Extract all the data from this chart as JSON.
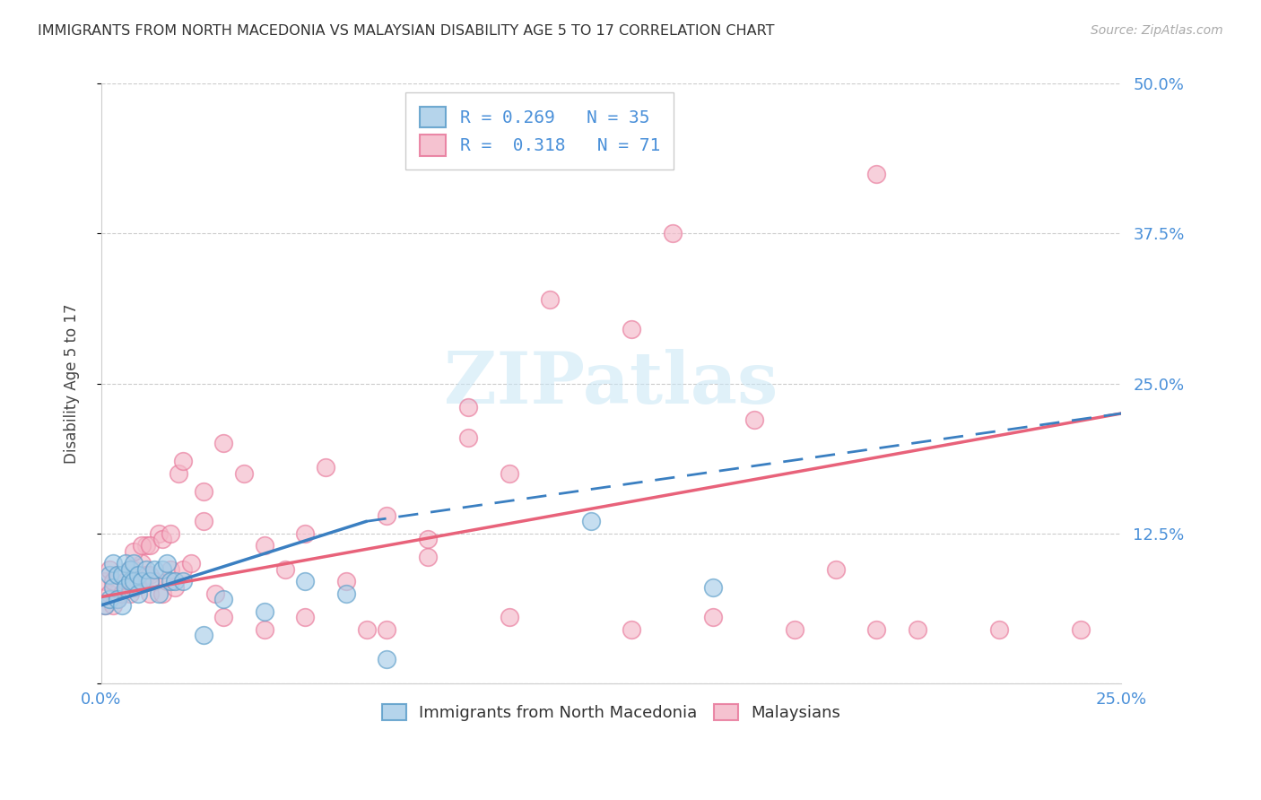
{
  "title": "IMMIGRANTS FROM NORTH MACEDONIA VS MALAYSIAN DISABILITY AGE 5 TO 17 CORRELATION CHART",
  "source": "Source: ZipAtlas.com",
  "ylabel": "Disability Age 5 to 17",
  "xlim": [
    0.0,
    0.25
  ],
  "ylim": [
    0.0,
    0.5
  ],
  "x_ticks": [
    0.0,
    0.05,
    0.1,
    0.15,
    0.2,
    0.25
  ],
  "y_ticks": [
    0.0,
    0.125,
    0.25,
    0.375,
    0.5
  ],
  "y_tick_labels_right": [
    "",
    "12.5%",
    "25.0%",
    "37.5%",
    "50.0%"
  ],
  "legend_text_1": "R = 0.269   N = 35",
  "legend_text_2": "R =  0.318   N = 71",
  "blue_color": "#a8cde8",
  "pink_color": "#f4b8c8",
  "blue_edge_color": "#5b9dc9",
  "pink_edge_color": "#e8779a",
  "blue_line_color": "#3a7fc1",
  "pink_line_color": "#e8627a",
  "label_color": "#4a90d9",
  "watermark": "ZIPatlas",
  "blue_scatter_x": [
    0.001,
    0.002,
    0.002,
    0.003,
    0.003,
    0.004,
    0.004,
    0.005,
    0.005,
    0.006,
    0.006,
    0.007,
    0.007,
    0.008,
    0.008,
    0.009,
    0.009,
    0.01,
    0.011,
    0.012,
    0.013,
    0.014,
    0.015,
    0.016,
    0.017,
    0.018,
    0.02,
    0.025,
    0.03,
    0.04,
    0.05,
    0.06,
    0.07,
    0.12,
    0.15
  ],
  "blue_scatter_y": [
    0.065,
    0.07,
    0.09,
    0.08,
    0.1,
    0.07,
    0.09,
    0.065,
    0.09,
    0.08,
    0.1,
    0.085,
    0.095,
    0.085,
    0.1,
    0.075,
    0.09,
    0.085,
    0.095,
    0.085,
    0.095,
    0.075,
    0.095,
    0.1,
    0.085,
    0.085,
    0.085,
    0.04,
    0.07,
    0.06,
    0.085,
    0.075,
    0.02,
    0.135,
    0.08
  ],
  "pink_scatter_x": [
    0.001,
    0.001,
    0.002,
    0.002,
    0.003,
    0.003,
    0.004,
    0.004,
    0.005,
    0.006,
    0.007,
    0.007,
    0.008,
    0.008,
    0.009,
    0.01,
    0.01,
    0.011,
    0.011,
    0.012,
    0.012,
    0.013,
    0.014,
    0.015,
    0.016,
    0.017,
    0.018,
    0.019,
    0.02,
    0.022,
    0.025,
    0.028,
    0.03,
    0.035,
    0.04,
    0.045,
    0.05,
    0.055,
    0.06,
    0.065,
    0.07,
    0.08,
    0.09,
    0.1,
    0.11,
    0.13,
    0.14,
    0.16,
    0.18,
    0.19,
    0.2,
    0.22,
    0.24,
    0.008,
    0.01,
    0.012,
    0.015,
    0.017,
    0.02,
    0.025,
    0.03,
    0.04,
    0.05,
    0.07,
    0.08,
    0.09,
    0.1,
    0.13,
    0.15,
    0.17,
    0.19
  ],
  "pink_scatter_y": [
    0.065,
    0.085,
    0.075,
    0.095,
    0.065,
    0.085,
    0.07,
    0.09,
    0.075,
    0.085,
    0.075,
    0.095,
    0.08,
    0.095,
    0.085,
    0.085,
    0.1,
    0.09,
    0.115,
    0.075,
    0.09,
    0.085,
    0.125,
    0.075,
    0.085,
    0.095,
    0.08,
    0.175,
    0.095,
    0.1,
    0.135,
    0.075,
    0.2,
    0.175,
    0.115,
    0.095,
    0.125,
    0.18,
    0.085,
    0.045,
    0.045,
    0.12,
    0.205,
    0.175,
    0.32,
    0.295,
    0.375,
    0.22,
    0.095,
    0.425,
    0.045,
    0.045,
    0.045,
    0.11,
    0.115,
    0.115,
    0.12,
    0.125,
    0.185,
    0.16,
    0.055,
    0.045,
    0.055,
    0.14,
    0.105,
    0.23,
    0.055,
    0.045,
    0.055,
    0.045,
    0.045
  ],
  "background_color": "#ffffff",
  "grid_color": "#cccccc",
  "blue_trend_x_start": 0.0,
  "blue_trend_x_solid_end": 0.065,
  "blue_trend_x_end": 0.25,
  "blue_trend_y_start": 0.065,
  "blue_trend_y_solid_end": 0.135,
  "blue_trend_y_end": 0.225,
  "pink_trend_x_start": 0.0,
  "pink_trend_x_end": 0.25,
  "pink_trend_y_start": 0.072,
  "pink_trend_y_end": 0.225
}
